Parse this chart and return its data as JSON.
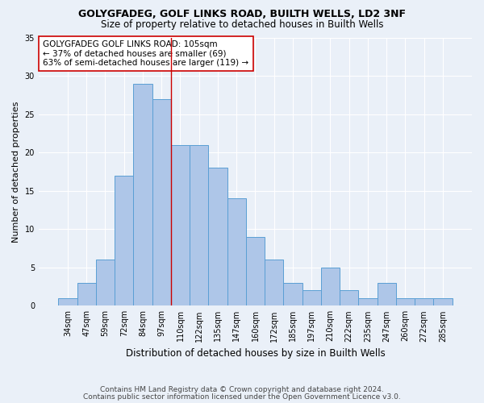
{
  "title1": "GOLYGFADEG, GOLF LINKS ROAD, BUILTH WELLS, LD2 3NF",
  "title2": "Size of property relative to detached houses in Builth Wells",
  "xlabel": "Distribution of detached houses by size in Builth Wells",
  "ylabel": "Number of detached properties",
  "footer1": "Contains HM Land Registry data © Crown copyright and database right 2024.",
  "footer2": "Contains public sector information licensed under the Open Government Licence v3.0.",
  "categories": [
    "34sqm",
    "47sqm",
    "59sqm",
    "72sqm",
    "84sqm",
    "97sqm",
    "110sqm",
    "122sqm",
    "135sqm",
    "147sqm",
    "160sqm",
    "172sqm",
    "185sqm",
    "197sqm",
    "210sqm",
    "222sqm",
    "235sqm",
    "247sqm",
    "260sqm",
    "272sqm",
    "285sqm"
  ],
  "values": [
    1,
    3,
    6,
    17,
    29,
    27,
    21,
    21,
    18,
    14,
    9,
    6,
    3,
    2,
    5,
    2,
    1,
    3,
    1,
    1,
    1
  ],
  "bar_color": "#aec6e8",
  "bar_edge_color": "#5a9fd4",
  "background_color": "#eaf0f8",
  "grid_color": "#ffffff",
  "vline_color": "#cc0000",
  "vline_x_index": 6,
  "annotation_text": "GOLYGFADEG GOLF LINKS ROAD: 105sqm\n← 37% of detached houses are smaller (69)\n63% of semi-detached houses are larger (119) →",
  "annotation_box_color": "#ffffff",
  "annotation_box_edge": "#cc0000",
  "ylim": [
    0,
    35
  ],
  "yticks": [
    0,
    5,
    10,
    15,
    20,
    25,
    30,
    35
  ],
  "title1_fontsize": 9,
  "title2_fontsize": 8.5,
  "xlabel_fontsize": 8.5,
  "ylabel_fontsize": 8,
  "footer_fontsize": 6.5,
  "tick_fontsize": 7,
  "annotation_fontsize": 7.5
}
